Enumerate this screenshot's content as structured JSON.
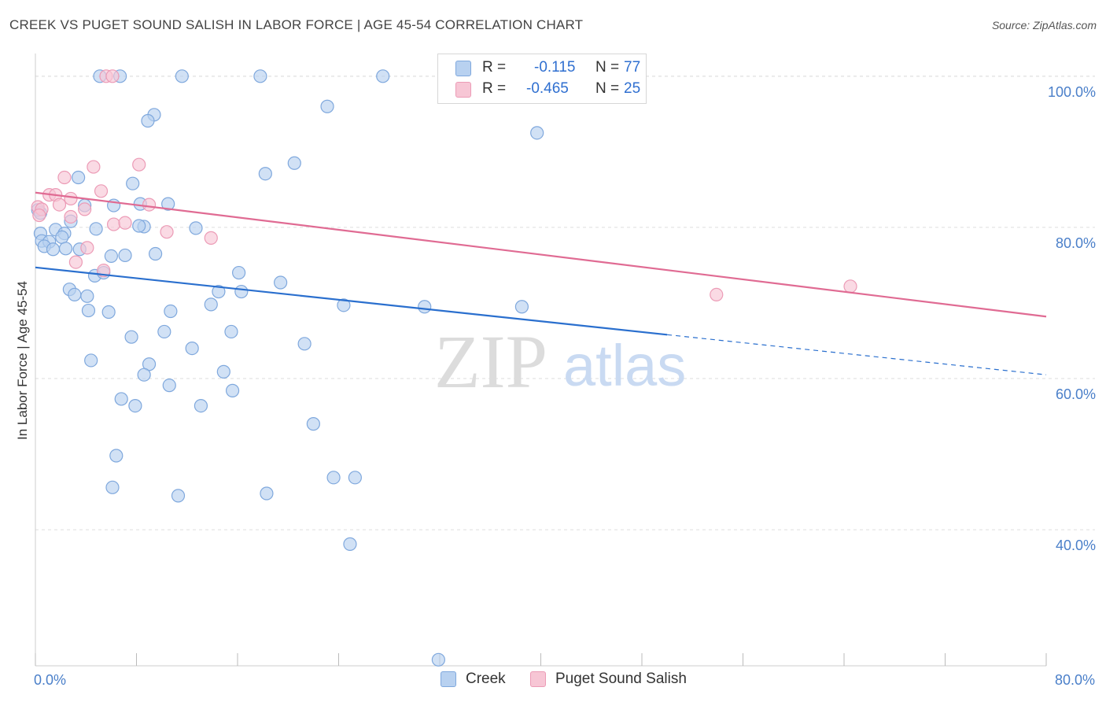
{
  "title": "CREEK VS PUGET SOUND SALISH IN LABOR FORCE | AGE 45-54 CORRELATION CHART",
  "source": "Source: ZipAtlas.com",
  "watermark": {
    "zip": "ZIP",
    "atlas": "atlas"
  },
  "legend": {
    "rows": [
      {
        "r_label": "R =",
        "r_value": "-0.115",
        "n_label": "N =",
        "n_value": "77"
      },
      {
        "r_label": "R =",
        "r_value": "-0.465",
        "n_label": "N =",
        "n_value": "25"
      }
    ]
  },
  "bottom_legend": {
    "creek": "Creek",
    "puget": "Puget Sound Salish"
  },
  "colors": {
    "creek_fill": "#b8d1f0",
    "creek_stroke": "#7fa8dd",
    "creek_line": "#2a6fce",
    "puget_fill": "#f7c6d5",
    "puget_stroke": "#ec9bb6",
    "puget_line": "#e06b93",
    "tick_label": "#4a7fc9",
    "grid": "#dddddd"
  },
  "chart_data": {
    "type": "scatter",
    "xlabel": "",
    "ylabel": "In Labor Force | Age 45-54",
    "xlim": [
      0,
      80
    ],
    "ylim": [
      22,
      103
    ],
    "x_tick_labels": [
      {
        "value": 0,
        "label": "0.0%"
      },
      {
        "value": 80,
        "label": "80.0%"
      }
    ],
    "y_ticks": [
      {
        "value": 100,
        "label": "100.0%"
      },
      {
        "value": 80,
        "label": "80.0%"
      },
      {
        "value": 60,
        "label": "60.0%"
      },
      {
        "value": 40,
        "label": "40.0%"
      }
    ],
    "x_minor_ticks": [
      0,
      8,
      16,
      24,
      32,
      40,
      48,
      56,
      64,
      72,
      80
    ],
    "grid": true,
    "series": [
      {
        "name": "Creek",
        "trend": {
          "x0": 0,
          "y0": 74.7,
          "x1": 50,
          "y1": 65.8,
          "dash_to_x": 80,
          "dash_to_y": 60.5
        },
        "points": [
          [
            5.1,
            100
          ],
          [
            11.6,
            100
          ],
          [
            17.8,
            100
          ],
          [
            27.5,
            100
          ],
          [
            45.3,
            100
          ],
          [
            6.7,
            100
          ],
          [
            23.1,
            96
          ],
          [
            9.4,
            94.9
          ],
          [
            8.9,
            94.1
          ],
          [
            39.7,
            92.5
          ],
          [
            20.5,
            88.5
          ],
          [
            18.2,
            87.1
          ],
          [
            3.4,
            86.6
          ],
          [
            7.7,
            85.8
          ],
          [
            0.2,
            82.3
          ],
          [
            6.2,
            82.9
          ],
          [
            8.3,
            83.1
          ],
          [
            10.5,
            83.1
          ],
          [
            3.9,
            82.9
          ],
          [
            2.8,
            80.8
          ],
          [
            0.4,
            81.9
          ],
          [
            4.8,
            79.8
          ],
          [
            8.6,
            80.1
          ],
          [
            8.2,
            80.2
          ],
          [
            12.7,
            79.9
          ],
          [
            0.4,
            79.2
          ],
          [
            1.6,
            79.7
          ],
          [
            2.3,
            79.2
          ],
          [
            2.1,
            78.7
          ],
          [
            0.5,
            78.2
          ],
          [
            1.1,
            78.1
          ],
          [
            0.7,
            77.5
          ],
          [
            1.4,
            77.1
          ],
          [
            2.4,
            77.2
          ],
          [
            3.5,
            77.1
          ],
          [
            6.0,
            76.2
          ],
          [
            7.1,
            76.3
          ],
          [
            9.5,
            76.5
          ],
          [
            4.7,
            73.6
          ],
          [
            5.4,
            74.0
          ],
          [
            16.1,
            74.0
          ],
          [
            19.4,
            72.7
          ],
          [
            2.7,
            71.8
          ],
          [
            3.1,
            71.1
          ],
          [
            4.1,
            70.9
          ],
          [
            14.5,
            71.5
          ],
          [
            16.3,
            71.5
          ],
          [
            13.9,
            69.8
          ],
          [
            24.4,
            69.7
          ],
          [
            30.8,
            69.5
          ],
          [
            38.5,
            69.5
          ],
          [
            4.2,
            69.0
          ],
          [
            5.8,
            68.8
          ],
          [
            10.7,
            68.9
          ],
          [
            10.2,
            66.2
          ],
          [
            15.5,
            66.2
          ],
          [
            7.6,
            65.5
          ],
          [
            21.3,
            64.6
          ],
          [
            12.4,
            64.0
          ],
          [
            4.4,
            62.4
          ],
          [
            9.0,
            61.9
          ],
          [
            14.9,
            60.9
          ],
          [
            8.6,
            60.5
          ],
          [
            10.6,
            59.1
          ],
          [
            15.6,
            58.4
          ],
          [
            6.8,
            57.3
          ],
          [
            7.9,
            56.4
          ],
          [
            13.1,
            56.4
          ],
          [
            22.0,
            54.0
          ],
          [
            6.4,
            49.8
          ],
          [
            23.6,
            46.9
          ],
          [
            25.3,
            46.9
          ],
          [
            6.1,
            45.6
          ],
          [
            11.3,
            44.5
          ],
          [
            18.3,
            44.8
          ],
          [
            24.9,
            38.1
          ],
          [
            31.9,
            22.8
          ]
        ]
      },
      {
        "name": "Puget Sound Salish",
        "trend": {
          "x0": 0,
          "y0": 84.6,
          "x1": 80,
          "y1": 68.2
        },
        "points": [
          [
            5.6,
            100
          ],
          [
            6.1,
            100
          ],
          [
            4.6,
            88.0
          ],
          [
            8.2,
            88.3
          ],
          [
            2.3,
            86.6
          ],
          [
            5.2,
            84.8
          ],
          [
            1.1,
            84.3
          ],
          [
            1.6,
            84.3
          ],
          [
            2.8,
            83.8
          ],
          [
            0.2,
            82.7
          ],
          [
            0.5,
            82.4
          ],
          [
            1.9,
            83.0
          ],
          [
            9.0,
            83.0
          ],
          [
            3.9,
            82.4
          ],
          [
            0.3,
            81.6
          ],
          [
            2.8,
            81.4
          ],
          [
            6.2,
            80.4
          ],
          [
            7.1,
            80.6
          ],
          [
            10.4,
            79.4
          ],
          [
            13.9,
            78.6
          ],
          [
            4.1,
            77.3
          ],
          [
            3.2,
            75.4
          ],
          [
            5.4,
            74.3
          ],
          [
            53.9,
            71.1
          ],
          [
            64.5,
            72.2
          ]
        ]
      }
    ]
  }
}
